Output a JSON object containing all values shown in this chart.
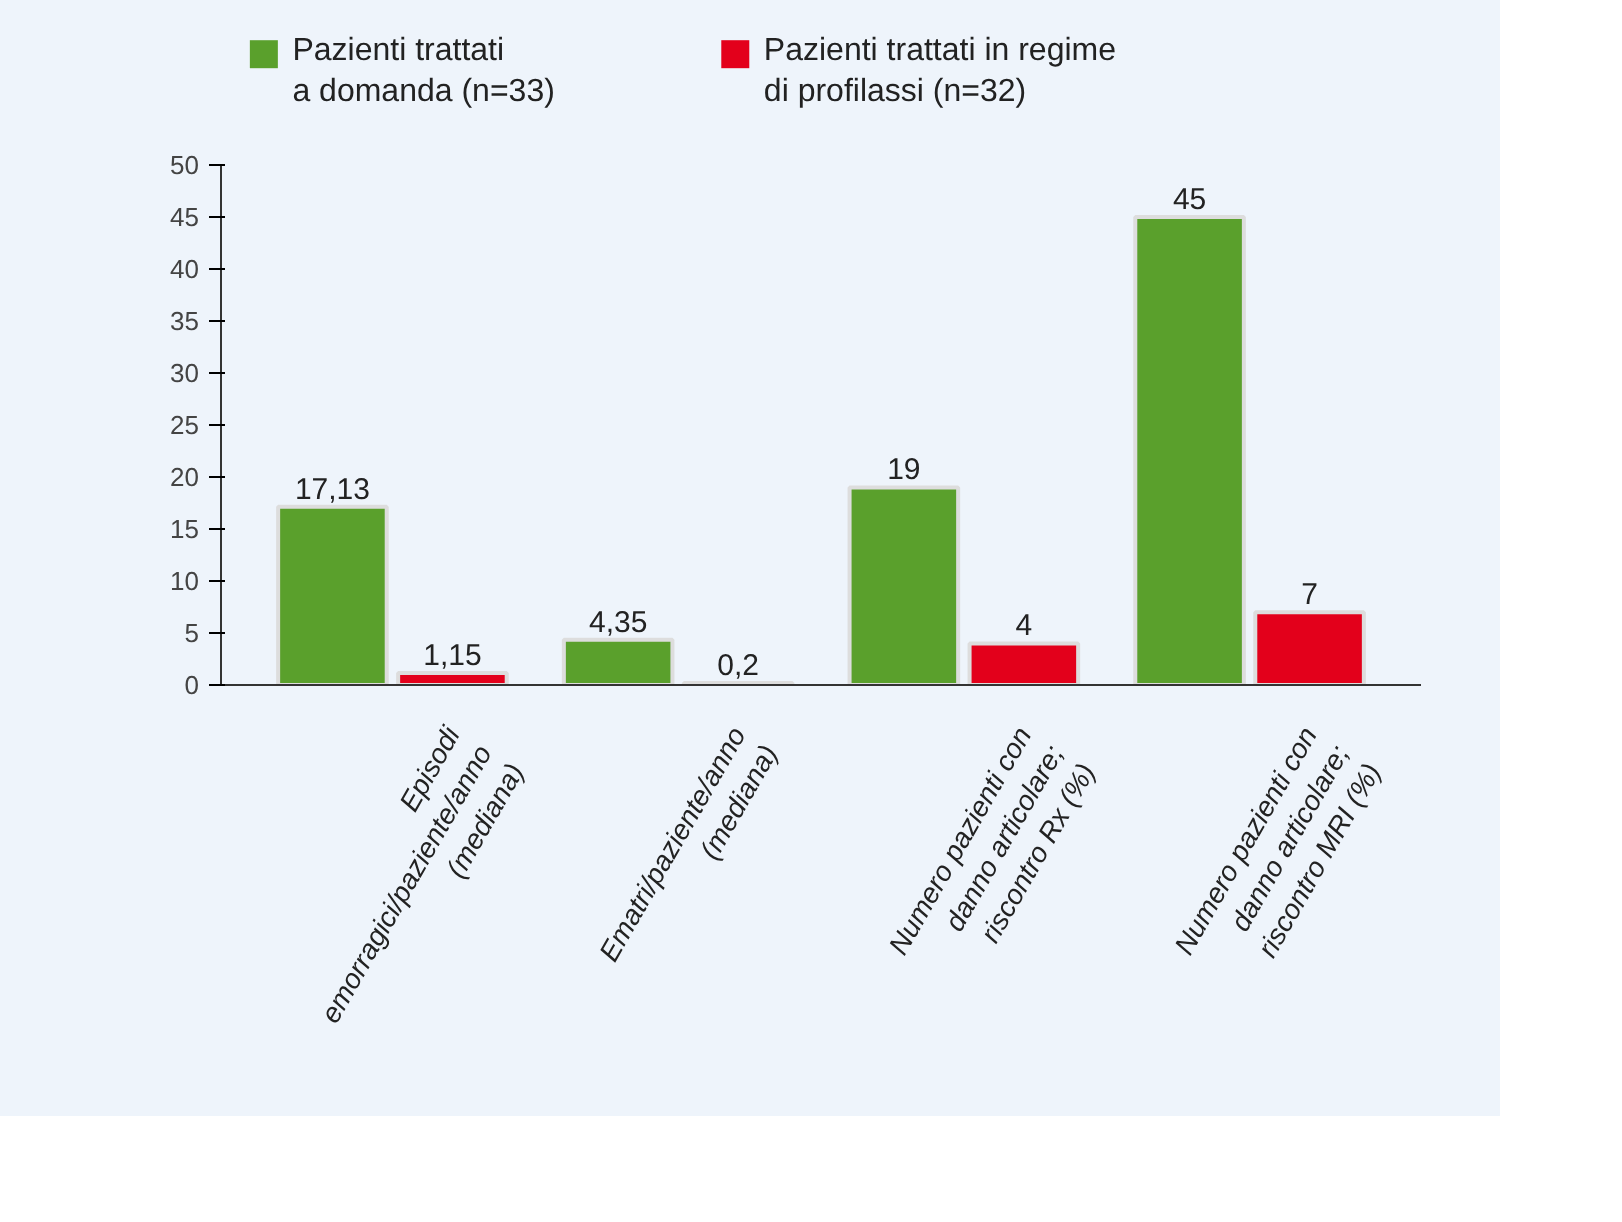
{
  "chart_data": {
    "type": "bar",
    "categories": [
      "Episodi\nemorragici/paziente/anno\n(mediana)",
      "Ematri/paziente/anno\n(mediana)",
      "Numero pazienti con\ndanno articolare;\nriscontro Rx (%)",
      "Numero pazienti con\ndanno articolare;\nriscontro MRI (%)"
    ],
    "series": [
      {
        "name": "Pazienti trattati\na domanda (n=33)",
        "color": "#5aa02c",
        "values": [
          17.13,
          4.35,
          19,
          45
        ],
        "value_labels": [
          "17,13",
          "4,35",
          "19",
          "45"
        ]
      },
      {
        "name": "Pazienti trattati in regime\ndi profilassi (n=32)",
        "color": "#e3001b",
        "values": [
          1.15,
          0.2,
          4,
          7
        ],
        "value_labels": [
          "1,15",
          "0,2",
          "4",
          "7"
        ]
      }
    ],
    "ylim": [
      0,
      50
    ],
    "yticks": [
      0,
      5,
      10,
      15,
      20,
      25,
      30,
      35,
      40,
      45,
      50
    ],
    "grid": false,
    "legend": "top"
  }
}
